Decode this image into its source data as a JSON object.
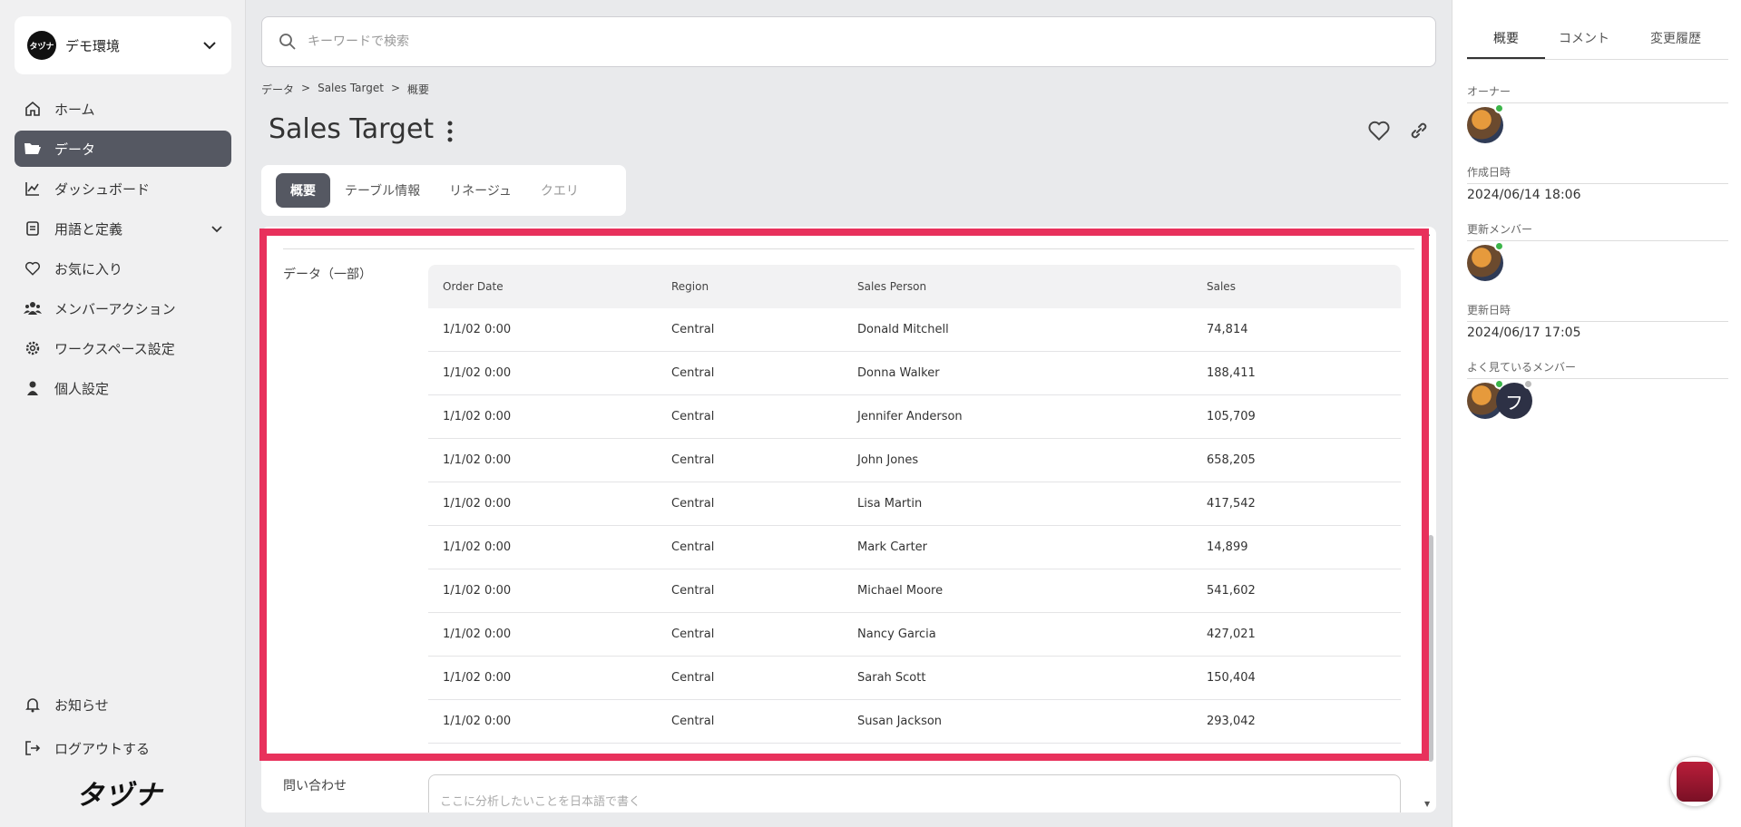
{
  "workspace": {
    "logo_text": "タヅナ",
    "name": "デモ環境"
  },
  "sidebar": {
    "items": [
      {
        "label": "ホーム"
      },
      {
        "label": "データ"
      },
      {
        "label": "ダッシュボード"
      },
      {
        "label": "用語と定義"
      },
      {
        "label": "お気に入り"
      },
      {
        "label": "メンバーアクション"
      },
      {
        "label": "ワークスペース設定"
      },
      {
        "label": "個人設定"
      }
    ],
    "bottom": [
      {
        "label": "お知らせ"
      },
      {
        "label": "ログアウトする"
      }
    ],
    "brand": "タヅナ"
  },
  "search": {
    "placeholder": "キーワードで検索"
  },
  "breadcrumb": {
    "items": [
      "データ",
      ">",
      "Sales Target",
      ">",
      "概要"
    ]
  },
  "page": {
    "title": "Sales Target"
  },
  "tabs": [
    "概要",
    "テーブル情報",
    "リネージュ",
    "クエリ"
  ],
  "data_section": {
    "label": "データ（一部）",
    "columns": [
      "Order Date",
      "Region",
      "Sales Person",
      "Sales"
    ],
    "rows": [
      [
        "1/1/02 0:00",
        "Central",
        "Donald Mitchell",
        "74,814"
      ],
      [
        "1/1/02 0:00",
        "Central",
        "Donna Walker",
        "188,411"
      ],
      [
        "1/1/02 0:00",
        "Central",
        "Jennifer Anderson",
        "105,709"
      ],
      [
        "1/1/02 0:00",
        "Central",
        "John Jones",
        "658,205"
      ],
      [
        "1/1/02 0:00",
        "Central",
        "Lisa Martin",
        "417,542"
      ],
      [
        "1/1/02 0:00",
        "Central",
        "Mark Carter",
        "14,899"
      ],
      [
        "1/1/02 0:00",
        "Central",
        "Michael Moore",
        "541,602"
      ],
      [
        "1/1/02 0:00",
        "Central",
        "Nancy Garcia",
        "427,021"
      ],
      [
        "1/1/02 0:00",
        "Central",
        "Sarah Scott",
        "150,404"
      ],
      [
        "1/1/02 0:00",
        "Central",
        "Susan Jackson",
        "293,042"
      ]
    ]
  },
  "query_section": {
    "label": "問い合わせ",
    "placeholder": "ここに分析したいことを日本語で書く"
  },
  "right_panel": {
    "tabs": [
      "概要",
      "コメント",
      "変更履歴"
    ],
    "owner_label": "オーナー",
    "created_label": "作成日時",
    "created_value": "2024/06/14 18:06",
    "updater_label": "更新メンバー",
    "updated_label": "更新日時",
    "updated_value": "2024/06/17 17:05",
    "viewers_label": "よく見ているメンバー",
    "viewer_initial": "フ"
  },
  "colors": {
    "accent": "#555862",
    "highlight": "#e8315c",
    "online": "#3cb54a"
  }
}
